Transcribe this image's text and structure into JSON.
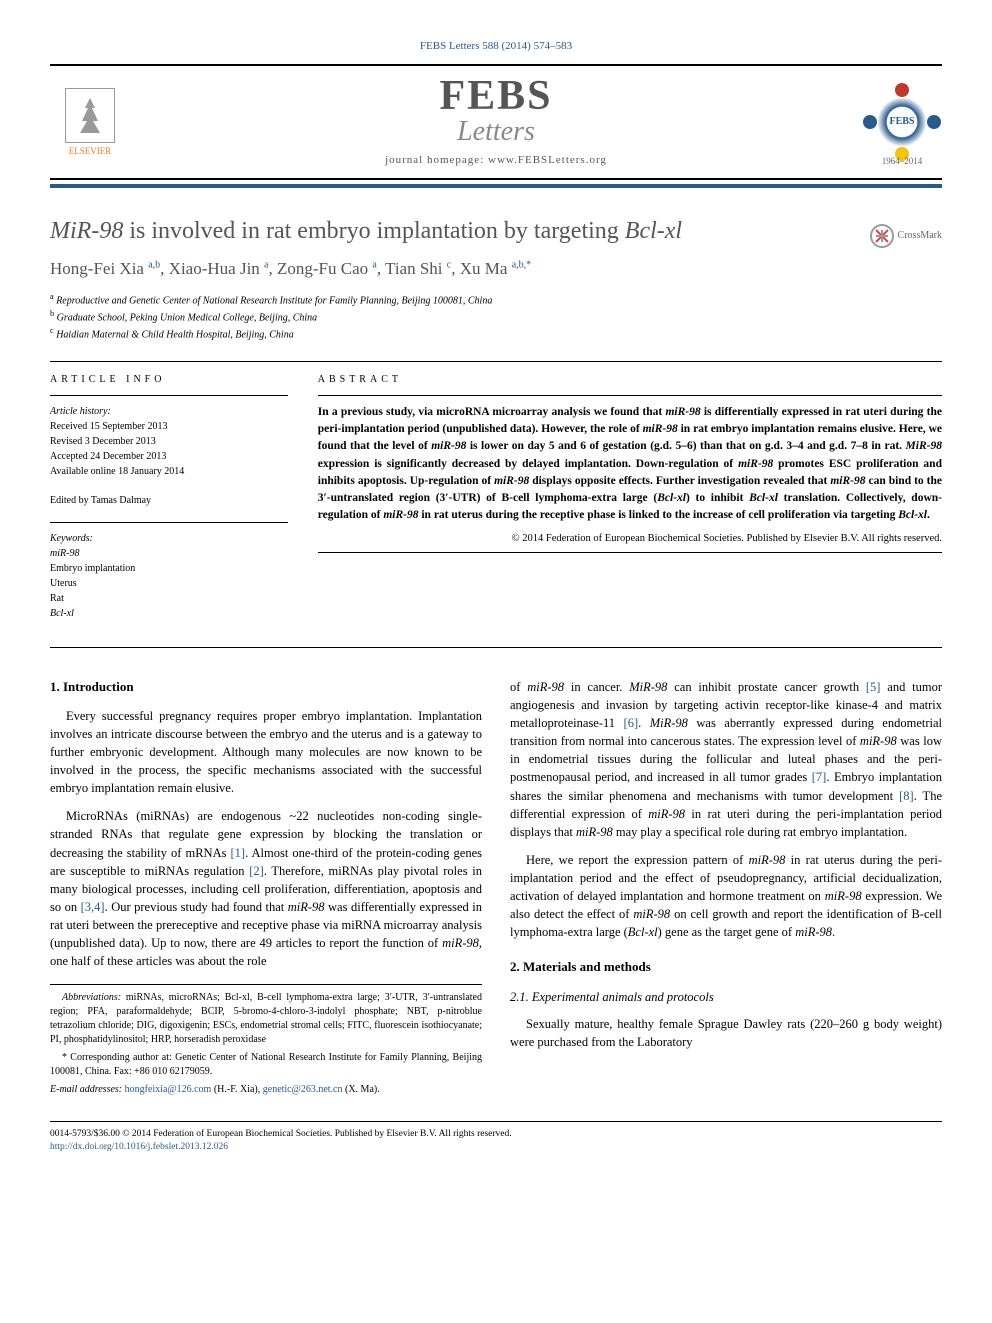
{
  "journal_ref": "FEBS Letters 588 (2014) 574–583",
  "publisher": "ELSEVIER",
  "journal_logo_top": "FEBS",
  "journal_logo_bottom": "Letters",
  "journal_homepage_label": "journal homepage: ",
  "journal_homepage": "www.FEBSLetters.org",
  "society_inner": "FEBS",
  "society_years": "1964–2014",
  "crossmark_label": "CrossMark",
  "title_pre": "MiR-98",
  "title_mid": " is involved in rat embryo implantation by targeting ",
  "title_post": "Bcl-xl",
  "authors_html": "Hong-Fei Xia <sup>a,b</sup>, Xiao-Hua Jin <sup>a</sup>, Zong-Fu Cao <sup>a</sup>, Tian Shi <sup>c</sup>, Xu Ma <sup>a,b,*</sup>",
  "affiliations": [
    "a Reproductive and Genetic Center of National Research Institute for Family Planning, Beijing 100081, China",
    "b Graduate School, Peking Union Medical College, Beijing, China",
    "c Haidian Maternal & Child Health Hospital, Beijing, China"
  ],
  "info_heading": "ARTICLE INFO",
  "abstract_heading": "ABSTRACT",
  "history_title": "Article history:",
  "history": [
    "Received 15 September 2013",
    "Revised 3 December 2013",
    "Accepted 24 December 2013",
    "Available online 18 January 2014"
  ],
  "editor_line": "Edited by Tamas Dalmay",
  "keywords_title": "Keywords:",
  "keywords": [
    "miR-98",
    "Embryo implantation",
    "Uterus",
    "Rat",
    "Bcl-xl"
  ],
  "keywords_italic": [
    true,
    false,
    false,
    false,
    true
  ],
  "abstract_body": "In a previous study, via microRNA microarray analysis we found that <span class=\"italic\">miR-98</span> is differentially expressed in rat uteri during the peri-implantation period (unpublished data). However, the role of <span class=\"italic\">miR-98</span> in rat embryo implantation remains elusive. Here, we found that the level of <span class=\"italic\">miR-98</span> is lower on day 5 and 6 of gestation (g.d. 5–6) than that on g.d. 3–4 and g.d. 7–8 in rat. <span class=\"italic\">MiR-98</span> expression is significantly decreased by delayed implantation. Down-regulation of <span class=\"italic\">miR-98</span> promotes ESC proliferation and inhibits apoptosis. Up-regulation of <span class=\"italic\">miR-98</span> displays opposite effects. Further investigation revealed that <span class=\"italic\">miR-98</span> can bind to the 3′-untranslated region (3′-UTR) of B-cell lymphoma-extra large (<span class=\"italic\">Bcl-xl</span>) to inhibit <span class=\"italic\">Bcl-xl</span> translation. Collectively, down-regulation of <span class=\"italic\">miR-98</span> in rat uterus during the receptive phase is linked to the increase of cell proliferation via targeting <span class=\"italic\">Bcl-xl</span>.",
  "copyright": "© 2014 Federation of European Biochemical Societies. Published by Elsevier B.V. All rights reserved.",
  "section1_heading": "1. Introduction",
  "intro_p1": "Every successful pregnancy requires proper embryo implantation. Implantation involves an intricate discourse between the embryo and the uterus and is a gateway to further embryonic development. Although many molecules are now known to be involved in the process, the specific mechanisms associated with the successful embryo implantation remain elusive.",
  "intro_p2": "MicroRNAs (miRNAs) are endogenous ~22 nucleotides non-coding single-stranded RNAs that regulate gene expression by blocking the translation or decreasing the stability of mRNAs <span class=\"ref-link\">[1]</span>. Almost one-third of the protein-coding genes are susceptible to miRNAs regulation <span class=\"ref-link\">[2]</span>. Therefore, miRNAs play pivotal roles in many biological processes, including cell proliferation, differentiation, apoptosis and so on <span class=\"ref-link\">[3,4]</span>. Our previous study had found that <span class=\"italic\">miR-98</span> was differentially expressed in rat uteri between the prereceptive and receptive phase via miRNA microarray analysis (unpublished data). Up to now, there are 49 articles to report the function of <span class=\"italic\">miR-98</span>, one half of these articles was about the role",
  "col2_p1": "of <span class=\"italic\">miR-98</span> in cancer. <span class=\"italic\">MiR-98</span> can inhibit prostate cancer growth <span class=\"ref-link\">[5]</span> and tumor angiogenesis and invasion by targeting activin receptor-like kinase-4 and matrix metalloproteinase-11 <span class=\"ref-link\">[6]</span>. <span class=\"italic\">MiR-98</span> was aberrantly expressed during endometrial transition from normal into cancerous states. The expression level of <span class=\"italic\">miR-98</span> was low in endometrial tissues during the follicular and luteal phases and the peri-postmenopausal period, and increased in all tumor grades <span class=\"ref-link\">[7]</span>. Embryo implantation shares the similar phenomena and mechanisms with tumor development <span class=\"ref-link\">[8]</span>. The differential expression of <span class=\"italic\">miR-98</span> in rat uteri during the peri-implantation period displays that <span class=\"italic\">miR-98</span> may play a specifical role during rat embryo implantation.",
  "col2_p2": "Here, we report the expression pattern of <span class=\"italic\">miR-98</span> in rat uterus during the peri-implantation period and the effect of pseudopregnancy, artificial decidualization, activation of delayed implantation and hormone treatment on <span class=\"italic\">miR-98</span> expression. We also detect the effect of <span class=\"italic\">miR-98</span> on cell growth and report the identification of B-cell lymphoma-extra large (<span class=\"italic\">Bcl-xl</span>) gene as the target gene of <span class=\"italic\">miR-98</span>.",
  "section2_heading": "2. Materials and methods",
  "subsection21_heading": "2.1. Experimental animals and protocols",
  "methods_p1": "Sexually mature, healthy female Sprague Dawley rats (220–260 g body weight) were purchased from the Laboratory",
  "abbrev_label": "Abbreviations:",
  "abbrev_text": " miRNAs, microRNAs; Bcl-xl, B-cell lymphoma-extra large; 3′-UTR, 3′-untranslated region; PFA, paraformaldehyde; BCIP, 5-bromo-4-chloro-3-indolyl phosphate; NBT, p-nitroblue tetrazolium chloride; DIG, digoxigenin; ESCs, endometrial stromal cells; FITC, fluorescein isothiocyanate; PI, phosphatidylinositol; HRP, horseradish peroxidase",
  "corresp_label": "* Corresponding author at: ",
  "corresp_text": "Genetic Center of National Research Institute for Family Planning, Beijing 100081, China. Fax: +86 010 62179059.",
  "email_label": "E-mail addresses: ",
  "email1": "hongfeixia@126.com",
  "email1_who": " (H.-F. Xia), ",
  "email2": "genetic@263.net.cn",
  "email2_who": " (X. Ma).",
  "footer_issn": "0014-5793/$36.00 © 2014 Federation of European Biochemical Societies. Published by Elsevier B.V. All rights reserved.",
  "footer_doi": "http://dx.doi.org/10.1016/j.febslet.2013.12.026",
  "colors": {
    "link": "#2a5a8a",
    "accent": "#e67e22",
    "badge_red": "#c0392b",
    "badge_yellow": "#f1c40f"
  }
}
